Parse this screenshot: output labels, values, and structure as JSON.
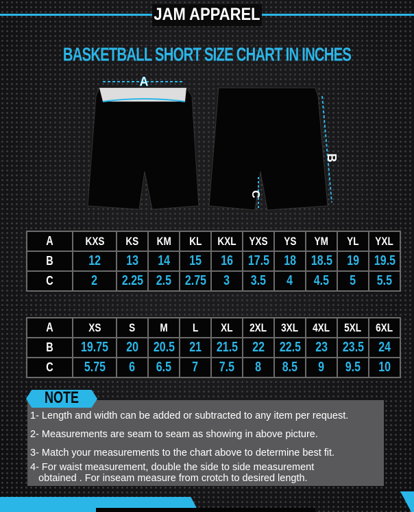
{
  "brand": "JAM APPAREL",
  "title": "BASKETBALL SHORT  SIZE CHART IN INCHES",
  "diagram": {
    "label_a": "A",
    "label_b": "B",
    "label_c": "C"
  },
  "colors": {
    "accent": "#2bb6e8",
    "background": "#141416",
    "note_box": "#59595b"
  },
  "tables": [
    {
      "rows": [
        {
          "label": "A",
          "cells": [
            "KXS",
            "KS",
            "KM",
            "KL",
            "KXL",
            "YXS",
            "YS",
            "YM",
            "YL",
            "YXL"
          ]
        },
        {
          "label": "B",
          "cells": [
            "12",
            "13",
            "14",
            "15",
            "16",
            "17.5",
            "18",
            "18.5",
            "19",
            "19.5"
          ]
        },
        {
          "label": "C",
          "cells": [
            "2",
            "2.25",
            "2.5",
            "2.75",
            "3",
            "3.5",
            "4",
            "4.5",
            "5",
            "5.5"
          ]
        }
      ]
    },
    {
      "rows": [
        {
          "label": "A",
          "cells": [
            "XS",
            "S",
            "M",
            "L",
            "XL",
            "2XL",
            "3XL",
            "4XL",
            "5XL",
            "6XL"
          ]
        },
        {
          "label": "B",
          "cells": [
            "19.75",
            "20",
            "20.5",
            "21",
            "21.5",
            "22",
            "22.5",
            "23",
            "23.5",
            "24"
          ]
        },
        {
          "label": "C",
          "cells": [
            "5.75",
            "6",
            "6.5",
            "7",
            "7.5",
            "8",
            "8.5",
            "9",
            "9.5",
            "10"
          ]
        }
      ]
    }
  ],
  "note": {
    "label": "NOTE",
    "items": [
      "1- Length and width can be added or subtracted to any item per request.",
      "2- Measurements are seam to seam  as showing in above picture.",
      "3- Match your measurements to the chart above to determine best fit.",
      "4- For waist measurement, double the side to side measurement",
      "   obtained . For inseam measure from crotch to desired length."
    ]
  }
}
